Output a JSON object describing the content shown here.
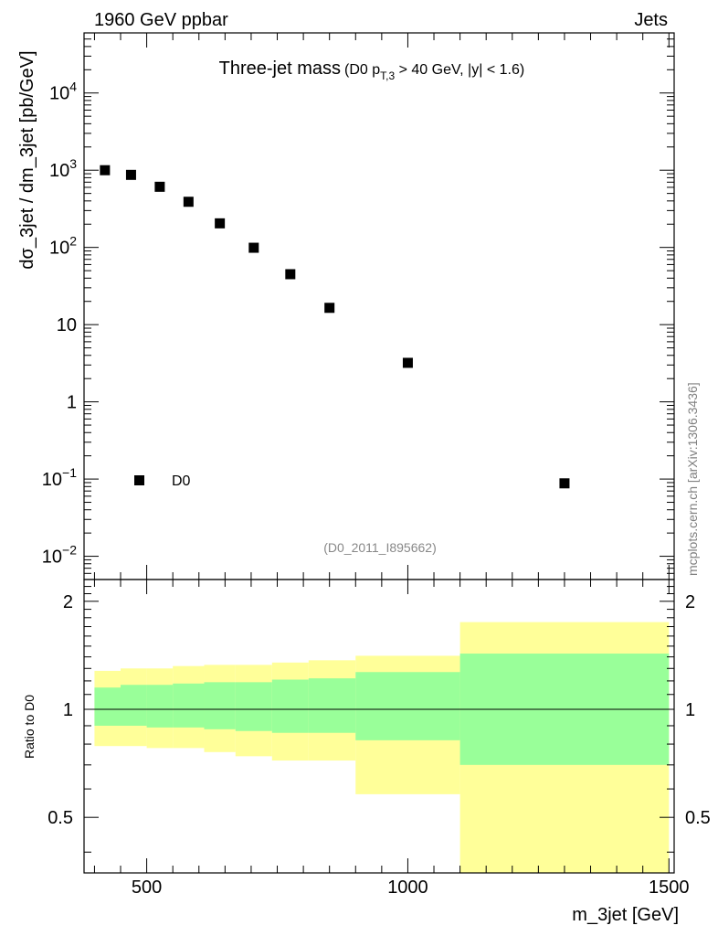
{
  "header": {
    "left_label": "1960 GeV ppbar",
    "right_label": "Jets",
    "side_label": "mcplots.cern.ch [arXiv:1306.3436]"
  },
  "colors": {
    "inner_band": "#99ff99",
    "outer_band": "#ffff99",
    "marker": "#000000",
    "frame": "#000000",
    "ref_label": "#888888",
    "side_label": "#808080"
  },
  "chart_data": [
    {
      "type": "scatter",
      "title": "Three-jet mass",
      "subtitle_parts": {
        "prefix": "(D0 p",
        "subscript": "T,3",
        "suffix": " > 40 GeV, |y| < 1.6)"
      },
      "ylabel": "dσ_3jet / dm_3jet [pb/GeV]",
      "xlabel": "",
      "yscale": "log",
      "xlim": [
        380,
        1510
      ],
      "ylim": [
        0.005,
        60000
      ],
      "y_ticks": [
        {
          "value": 10000,
          "mantissa": "10",
          "exponent": "4"
        },
        {
          "value": 1000,
          "mantissa": "10",
          "exponent": "3"
        },
        {
          "value": 100,
          "mantissa": "10",
          "exponent": "2"
        },
        {
          "value": 10,
          "mantissa": "10",
          "exponent": ""
        },
        {
          "value": 1,
          "mantissa": "1",
          "exponent": ""
        },
        {
          "value": 0.1,
          "mantissa": "10",
          "exponent": "−1"
        },
        {
          "value": 0.01,
          "mantissa": "10",
          "exponent": "−2"
        }
      ],
      "series": [
        {
          "name": "D0",
          "x": [
            420,
            470,
            525,
            580,
            640,
            705,
            775,
            850,
            1000,
            1300
          ],
          "y": [
            1000,
            870,
            610,
            390,
            205,
            99,
            45,
            16.5,
            3.2,
            0.088
          ]
        }
      ],
      "legend": {
        "label": "D0",
        "placement": "bottom-left"
      },
      "annotation": "(D0_2011_I895662)"
    },
    {
      "type": "area",
      "ylabel": "Ratio to D0",
      "xlabel": "m_3jet [GeV]",
      "yscale": "log",
      "xlim": [
        380,
        1510
      ],
      "ylim": [
        0.35,
        2.3
      ],
      "x_ticks": [
        500,
        1000,
        1500
      ],
      "y_ticks": [
        {
          "value": 0.5,
          "label": "0.5"
        },
        {
          "value": 1,
          "label": "1"
        },
        {
          "value": 2,
          "label": "2"
        }
      ],
      "reference_line": 1,
      "bands": {
        "bin_edges": [
          400,
          450,
          500,
          550,
          610,
          670,
          740,
          810,
          900,
          1100,
          1500
        ],
        "inner_upper": [
          1.15,
          1.17,
          1.17,
          1.18,
          1.19,
          1.19,
          1.21,
          1.22,
          1.27,
          1.43
        ],
        "inner_lower": [
          0.9,
          0.9,
          0.89,
          0.89,
          0.88,
          0.87,
          0.86,
          0.86,
          0.82,
          0.7
        ],
        "outer_upper": [
          1.28,
          1.3,
          1.3,
          1.32,
          1.33,
          1.33,
          1.35,
          1.37,
          1.41,
          1.75
        ],
        "outer_lower": [
          0.79,
          0.79,
          0.78,
          0.78,
          0.76,
          0.74,
          0.72,
          0.72,
          0.58,
          0.33
        ]
      }
    }
  ]
}
